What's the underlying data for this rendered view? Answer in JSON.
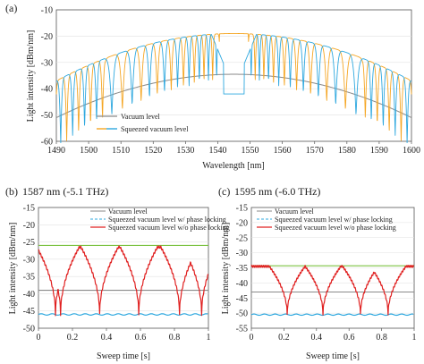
{
  "chart_data": [
    {
      "panel_label": "(a)",
      "type": "line",
      "xlabel": "Wavelength [nm]",
      "ylabel": "Light intensity [dBm/nm]",
      "xlim": [
        1490,
        1600
      ],
      "ylim": [
        -60,
        -10
      ],
      "xticks": [
        "1490",
        "1500",
        "1510",
        "1520",
        "1530",
        "1540",
        "1550",
        "1560",
        "1570",
        "1580",
        "1590",
        "1600"
      ],
      "yticks": [
        "-60",
        "-50",
        "-40",
        "-30",
        "-20",
        "-10"
      ],
      "legend_position": "bottom-left",
      "series": [
        {
          "name": "Vacuum level",
          "color": "#8a8a8a",
          "style": "smooth envelope",
          "peak_wavelength": 1545,
          "peak_value": -34.5,
          "edge_value": -51
        },
        {
          "name": "Squeezed vacuum level",
          "color": "#2ea8df",
          "style": "comb fringes (squeezed)",
          "envelope_top": -19,
          "envelope_edge": -37,
          "dip_center": 1545,
          "dip_value": -42
        },
        {
          "name": "",
          "color": "#f5a623",
          "style": "comb fringes (anti-squeezed)",
          "envelope_top": -19,
          "envelope_edge": -37
        }
      ]
    },
    {
      "panel_label": "(b)",
      "title": "1587 nm (-5.1 THz)",
      "type": "line",
      "xlabel": "Sweep time [s]",
      "ylabel": "Light intensity [dBm/nm]",
      "xlim": [
        0,
        1
      ],
      "ylim": [
        -50,
        -15
      ],
      "xticks": [
        "0",
        "0.2",
        "0.4",
        "0.6",
        "0.8",
        "1"
      ],
      "yticks": [
        "-50",
        "-45",
        "-40",
        "-35",
        "-30",
        "-25",
        "-20",
        "-15"
      ],
      "legend_position": "top-right",
      "series": [
        {
          "name": "Vacuum level",
          "color": "#8a8a8a",
          "value": -39
        },
        {
          "name": "Squeezed vacuum level w/ phase locking",
          "color": "#2ea8df",
          "value": -46
        },
        {
          "name": "Squeezed vacuum level w/o phase locking",
          "color": "#e02020",
          "minima_s": [
            0.1,
            0.13,
            0.36,
            0.59,
            0.83,
            0.96
          ],
          "min_value": -46,
          "max_value": -26.5
        },
        {
          "name": "",
          "color": "#7cc242",
          "value": -26
        }
      ]
    },
    {
      "panel_label": "(c)",
      "title": "1595 nm (-6.0 THz)",
      "type": "line",
      "xlabel": "Sweep time [s]",
      "ylabel": "Light intensity [dBm/nm]",
      "xlim": [
        0,
        1
      ],
      "ylim": [
        -55,
        -15
      ],
      "xticks": [
        "0",
        "0.2",
        "0.4",
        "0.6",
        "0.8",
        "1"
      ],
      "yticks": [
        "-55",
        "-50",
        "-45",
        "-40",
        "-35",
        "-30",
        "-25",
        "-20",
        "-15"
      ],
      "legend_position": "top-right",
      "series": [
        {
          "name": "Vacuum level",
          "color": "#8a8a8a",
          "value": -43
        },
        {
          "name": "Squeezed vacuum level w/ phase locking",
          "color": "#2ea8df",
          "value": -50.5
        },
        {
          "name": "Squeezed vacuum level w/o phase locking",
          "color": "#e02020",
          "minima_s": [
            0.22,
            0.44,
            0.67,
            0.84
          ],
          "min_value": -50.5,
          "max_value": -34.5
        },
        {
          "name": "",
          "color": "#7cc242",
          "value": -34.3
        }
      ]
    }
  ]
}
